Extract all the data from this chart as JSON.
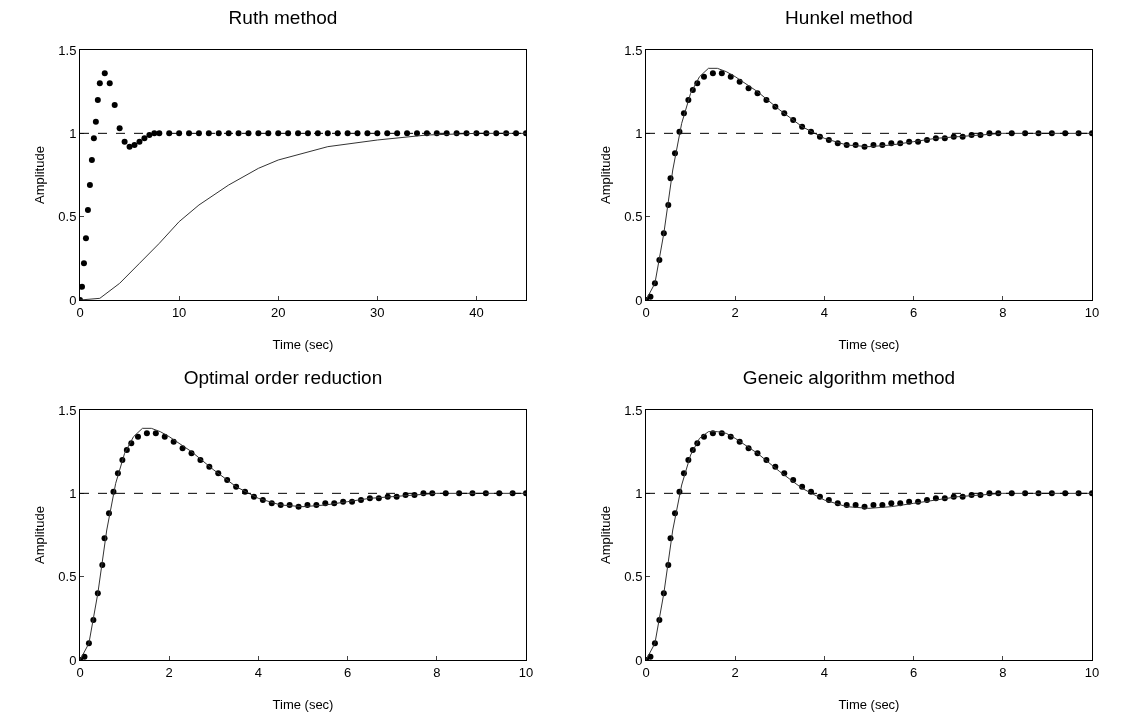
{
  "chart_data": [
    {
      "type": "line",
      "title": "Ruth method",
      "xlabel": "Time (sec)",
      "ylabel": "Amplitude",
      "xlim": [
        0,
        45
      ],
      "xticks": [
        0,
        10,
        20,
        30,
        40
      ],
      "ylim": [
        0,
        1.5
      ],
      "yticks": [
        0,
        0.5,
        1,
        1.5
      ],
      "grid": false,
      "ref_lines": [
        {
          "axis": "y",
          "value": 1,
          "line_style": "dashed",
          "color": "#000000"
        }
      ],
      "series": [
        {
          "type": "scatter",
          "marker": "circle",
          "color": "#000000",
          "x": [
            0,
            0.2,
            0.4,
            0.6,
            0.8,
            1.0,
            1.2,
            1.4,
            1.6,
            1.8,
            2,
            2.5,
            3,
            3.5,
            4,
            4.5,
            5,
            5.5,
            6,
            6.5,
            7,
            7.5,
            8,
            9,
            10,
            11,
            12,
            13,
            14,
            15,
            16,
            17,
            18,
            19,
            20,
            21,
            22,
            23,
            24,
            25,
            26,
            27,
            28,
            29,
            30,
            31,
            32,
            33,
            34,
            35,
            36,
            37,
            38,
            39,
            40,
            41,
            42,
            43,
            44,
            45
          ],
          "values": [
            0,
            0.08,
            0.22,
            0.37,
            0.54,
            0.69,
            0.84,
            0.97,
            1.07,
            1.2,
            1.3,
            1.36,
            1.3,
            1.17,
            1.03,
            0.95,
            0.92,
            0.93,
            0.95,
            0.97,
            0.99,
            1,
            1,
            1,
            1,
            1,
            1,
            1,
            1,
            1,
            1,
            1,
            1,
            1,
            1,
            1,
            1,
            1,
            1,
            1,
            1,
            1,
            1,
            1,
            1,
            1,
            1,
            1,
            1,
            1,
            1,
            1,
            1,
            1,
            1,
            1,
            1,
            1,
            1,
            1
          ]
        },
        {
          "type": "line",
          "line_style": "solid",
          "color": "#333333",
          "x": [
            0,
            2,
            4,
            6,
            8,
            10,
            12,
            15,
            18,
            20,
            25,
            30,
            35,
            40,
            45
          ],
          "values": [
            0,
            0.01,
            0.1,
            0.22,
            0.34,
            0.47,
            0.57,
            0.69,
            0.79,
            0.84,
            0.92,
            0.96,
            0.99,
            1,
            1
          ]
        }
      ]
    },
    {
      "type": "line",
      "title": "Hunkel method",
      "xlabel": "Time (sec)",
      "ylabel": "Amplitude",
      "xlim": [
        0,
        10
      ],
      "xticks": [
        0,
        2,
        4,
        6,
        8,
        10
      ],
      "ylim": [
        0,
        1.5
      ],
      "yticks": [
        0,
        0.5,
        1,
        1.5
      ],
      "grid": false,
      "ref_lines": [
        {
          "axis": "y",
          "value": 1,
          "line_style": "dashed",
          "color": "#000000"
        }
      ],
      "series": [
        {
          "type": "scatter",
          "marker": "circle",
          "color": "#000000",
          "x": [
            0,
            0.1,
            0.2,
            0.3,
            0.4,
            0.5,
            0.55,
            0.65,
            0.75,
            0.85,
            0.95,
            1.05,
            1.15,
            1.3,
            1.5,
            1.7,
            1.9,
            2.1,
            2.3,
            2.5,
            2.7,
            2.9,
            3.1,
            3.3,
            3.5,
            3.7,
            3.9,
            4.1,
            4.3,
            4.5,
            4.7,
            4.9,
            5.1,
            5.3,
            5.5,
            5.7,
            5.9,
            6.1,
            6.3,
            6.5,
            6.7,
            6.9,
            7.1,
            7.3,
            7.5,
            7.7,
            7.9,
            8.2,
            8.5,
            8.8,
            9.1,
            9.4,
            9.7,
            10
          ],
          "values": [
            0,
            0.02,
            0.1,
            0.24,
            0.4,
            0.57,
            0.73,
            0.88,
            1.01,
            1.12,
            1.2,
            1.26,
            1.3,
            1.34,
            1.36,
            1.36,
            1.34,
            1.31,
            1.27,
            1.24,
            1.2,
            1.16,
            1.12,
            1.08,
            1.04,
            1.01,
            0.98,
            0.96,
            0.94,
            0.93,
            0.93,
            0.92,
            0.93,
            0.93,
            0.94,
            0.94,
            0.95,
            0.95,
            0.96,
            0.97,
            0.97,
            0.98,
            0.98,
            0.99,
            0.99,
            1,
            1,
            1,
            1,
            1,
            1,
            1,
            1,
            1
          ]
        },
        {
          "type": "line",
          "line_style": "solid",
          "color": "#333333",
          "x": [
            0,
            0.2,
            0.4,
            0.6,
            0.8,
            1.0,
            1.2,
            1.4,
            1.6,
            1.8,
            2,
            2.5,
            3,
            3.5,
            4,
            4.5,
            5,
            5.5,
            6,
            6.5,
            7,
            7.5,
            8,
            9,
            10
          ],
          "values": [
            0,
            0.1,
            0.4,
            0.78,
            1.06,
            1.24,
            1.34,
            1.39,
            1.39,
            1.37,
            1.34,
            1.25,
            1.14,
            1.04,
            0.97,
            0.93,
            0.92,
            0.93,
            0.95,
            0.97,
            0.98,
            0.99,
            1,
            1,
            1
          ]
        }
      ]
    },
    {
      "type": "line",
      "title": "Optimal order reduction",
      "xlabel": "Time (sec)",
      "ylabel": "Amplitude",
      "xlim": [
        0,
        10
      ],
      "xticks": [
        0,
        2,
        4,
        6,
        8,
        10
      ],
      "ylim": [
        0,
        1.5
      ],
      "yticks": [
        0,
        0.5,
        1,
        1.5
      ],
      "grid": false,
      "ref_lines": [
        {
          "axis": "y",
          "value": 1,
          "line_style": "dashed",
          "color": "#000000"
        }
      ],
      "series": [
        {
          "type": "scatter",
          "marker": "circle",
          "color": "#000000",
          "x": [
            0,
            0.1,
            0.2,
            0.3,
            0.4,
            0.5,
            0.55,
            0.65,
            0.75,
            0.85,
            0.95,
            1.05,
            1.15,
            1.3,
            1.5,
            1.7,
            1.9,
            2.1,
            2.3,
            2.5,
            2.7,
            2.9,
            3.1,
            3.3,
            3.5,
            3.7,
            3.9,
            4.1,
            4.3,
            4.5,
            4.7,
            4.9,
            5.1,
            5.3,
            5.5,
            5.7,
            5.9,
            6.1,
            6.3,
            6.5,
            6.7,
            6.9,
            7.1,
            7.3,
            7.5,
            7.7,
            7.9,
            8.2,
            8.5,
            8.8,
            9.1,
            9.4,
            9.7,
            10
          ],
          "values": [
            0,
            0.02,
            0.1,
            0.24,
            0.4,
            0.57,
            0.73,
            0.88,
            1.01,
            1.12,
            1.2,
            1.26,
            1.3,
            1.34,
            1.36,
            1.36,
            1.34,
            1.31,
            1.27,
            1.24,
            1.2,
            1.16,
            1.12,
            1.08,
            1.04,
            1.01,
            0.98,
            0.96,
            0.94,
            0.93,
            0.93,
            0.92,
            0.93,
            0.93,
            0.94,
            0.94,
            0.95,
            0.95,
            0.96,
            0.97,
            0.97,
            0.98,
            0.98,
            0.99,
            0.99,
            1,
            1,
            1,
            1,
            1,
            1,
            1,
            1,
            1
          ]
        },
        {
          "type": "line",
          "line_style": "solid",
          "color": "#333333",
          "x": [
            0,
            0.2,
            0.4,
            0.6,
            0.8,
            1.0,
            1.2,
            1.4,
            1.6,
            1.8,
            2,
            2.5,
            3,
            3.5,
            4,
            4.5,
            5,
            5.5,
            6,
            6.5,
            7,
            7.5,
            8,
            9,
            10
          ],
          "values": [
            0,
            0.1,
            0.4,
            0.78,
            1.06,
            1.24,
            1.34,
            1.39,
            1.39,
            1.37,
            1.34,
            1.25,
            1.14,
            1.04,
            0.97,
            0.93,
            0.92,
            0.93,
            0.95,
            0.97,
            0.98,
            0.99,
            1,
            1,
            1
          ]
        }
      ]
    },
    {
      "type": "line",
      "title": "Geneic algorithm method",
      "xlabel": "Time (sec)",
      "ylabel": "Amplitude",
      "xlim": [
        0,
        10
      ],
      "xticks": [
        0,
        2,
        4,
        6,
        8,
        10
      ],
      "ylim": [
        0,
        1.5
      ],
      "yticks": [
        0,
        0.5,
        1,
        1.5
      ],
      "grid": false,
      "ref_lines": [
        {
          "axis": "y",
          "value": 1,
          "line_style": "dashed",
          "color": "#000000"
        }
      ],
      "series": [
        {
          "type": "scatter",
          "marker": "circle",
          "color": "#000000",
          "x": [
            0,
            0.1,
            0.2,
            0.3,
            0.4,
            0.5,
            0.55,
            0.65,
            0.75,
            0.85,
            0.95,
            1.05,
            1.15,
            1.3,
            1.5,
            1.7,
            1.9,
            2.1,
            2.3,
            2.5,
            2.7,
            2.9,
            3.1,
            3.3,
            3.5,
            3.7,
            3.9,
            4.1,
            4.3,
            4.5,
            4.7,
            4.9,
            5.1,
            5.3,
            5.5,
            5.7,
            5.9,
            6.1,
            6.3,
            6.5,
            6.7,
            6.9,
            7.1,
            7.3,
            7.5,
            7.7,
            7.9,
            8.2,
            8.5,
            8.8,
            9.1,
            9.4,
            9.7,
            10
          ],
          "values": [
            0,
            0.02,
            0.1,
            0.24,
            0.4,
            0.57,
            0.73,
            0.88,
            1.01,
            1.12,
            1.2,
            1.26,
            1.3,
            1.34,
            1.36,
            1.36,
            1.34,
            1.31,
            1.27,
            1.24,
            1.2,
            1.16,
            1.12,
            1.08,
            1.04,
            1.01,
            0.98,
            0.96,
            0.94,
            0.93,
            0.93,
            0.92,
            0.93,
            0.93,
            0.94,
            0.94,
            0.95,
            0.95,
            0.96,
            0.97,
            0.97,
            0.98,
            0.98,
            0.99,
            0.99,
            1,
            1,
            1,
            1,
            1,
            1,
            1,
            1,
            1
          ]
        },
        {
          "type": "line",
          "line_style": "solid",
          "color": "#333333",
          "x": [
            0,
            0.2,
            0.4,
            0.6,
            0.8,
            1.0,
            1.2,
            1.4,
            1.6,
            1.8,
            2,
            2.5,
            3,
            3.5,
            4,
            4.5,
            5,
            5.5,
            6,
            6.5,
            7,
            7.5,
            8,
            9,
            10
          ],
          "values": [
            0,
            0.1,
            0.4,
            0.78,
            1.05,
            1.23,
            1.33,
            1.37,
            1.37,
            1.36,
            1.33,
            1.24,
            1.13,
            1.03,
            0.96,
            0.92,
            0.91,
            0.92,
            0.94,
            0.96,
            0.98,
            0.99,
            1,
            1,
            1
          ]
        }
      ]
    }
  ]
}
